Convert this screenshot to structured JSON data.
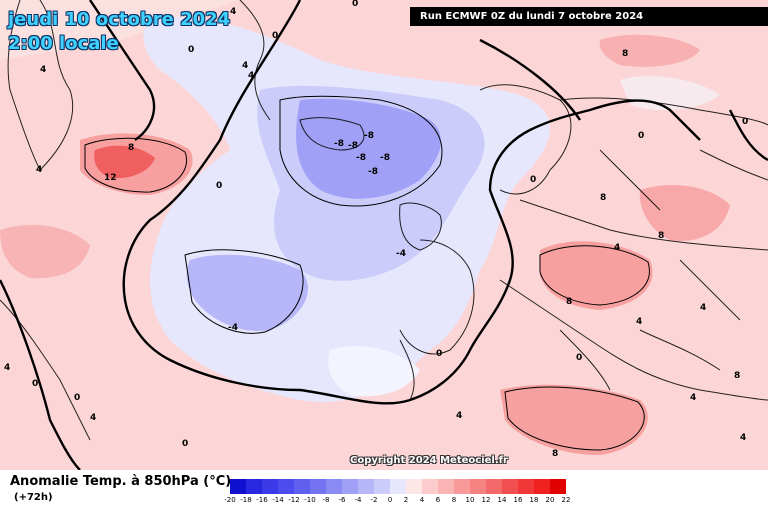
{
  "header": {
    "date": "jeudi 10 octobre 2024",
    "time": "2:00 locale",
    "run": "Run ECMWF 0Z du lundi 7 octobre 2024"
  },
  "copyright": "Copyright 2024 Meteociel.fr",
  "legend": {
    "title": "Anomalie Temp. à 850hPa (°C)",
    "lead": "(+72h)",
    "ticks": [
      "-20",
      "-18",
      "-16",
      "-14",
      "-12",
      "-10",
      "-8",
      "-6",
      "-4",
      "-2",
      "0",
      "2",
      "4",
      "6",
      "8",
      "10",
      "12",
      "14",
      "16",
      "18",
      "20",
      "22"
    ],
    "colors": [
      "#1010d0",
      "#2828e0",
      "#3a3ae8",
      "#4c4cee",
      "#6060f0",
      "#7474f2",
      "#8a8af4",
      "#a0a0f6",
      "#b6b6f8",
      "#ccccfa",
      "#e6e6fc",
      "#fde6e6",
      "#fccccc",
      "#fab4b4",
      "#f89a9a",
      "#f68282",
      "#f46a6a",
      "#f25050",
      "#f03838",
      "#ee2020",
      "#e00000"
    ]
  },
  "map_labels": [
    "0",
    "0",
    "0",
    "4",
    "4",
    "4",
    "8",
    "12",
    "4",
    "0",
    "8",
    "0",
    "0",
    "0",
    "0",
    "-8",
    "-8",
    "-8",
    "-8",
    "-8",
    "-8",
    "-4",
    "-4",
    "8",
    "8",
    "8",
    "4",
    "4",
    "4",
    "4",
    "4",
    "8",
    "0",
    "0",
    "0",
    "4",
    "4",
    "4",
    "8",
    "4",
    "0"
  ],
  "colors": {
    "land_border": "#000000",
    "contour": "#000000",
    "title_text": "#3ed0ff"
  }
}
